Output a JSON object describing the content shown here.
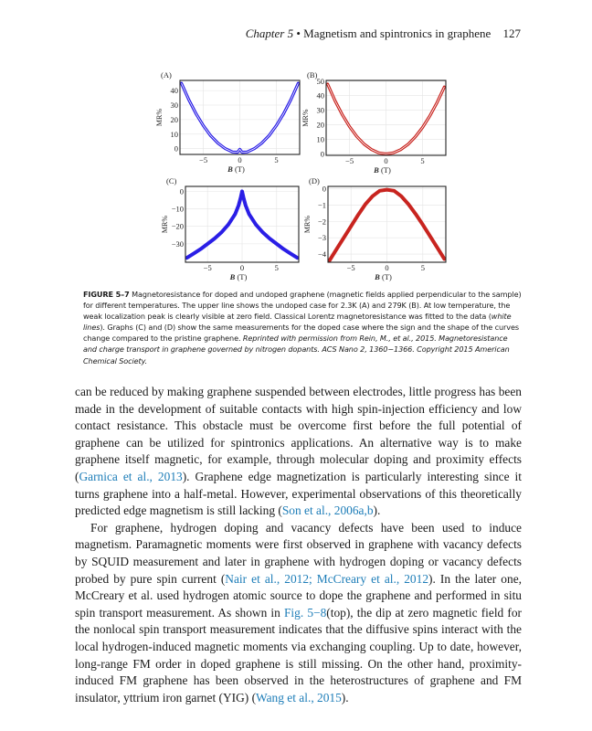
{
  "running_head": {
    "chapter": "Chapter 5",
    "bullet": "•",
    "title": "Magnetism and spintronics in graphene",
    "page": "127"
  },
  "colors": {
    "blue": "#2a1ee6",
    "red": "#c8241f",
    "link": "#1d7db8"
  },
  "chart_data": [
    {
      "panel": "(A)",
      "type": "line",
      "color": "#2a1ee6",
      "fit_line": "white",
      "xlabel_var": "B",
      "xlabel_unit": "(T)",
      "ylabel": "MR%",
      "xlim": [
        -8.2,
        8.2
      ],
      "ylim": [
        -4,
        47
      ],
      "xticks": [
        -5,
        0,
        5
      ],
      "xtick_labels": [
        "−5",
        "0",
        "5"
      ],
      "yticks": [
        0,
        10,
        20,
        30,
        40
      ],
      "ytick_labels": [
        "0",
        "10",
        "20",
        "30",
        "40"
      ],
      "x": [
        -8,
        -7,
        -6,
        -5,
        -4,
        -3,
        -2,
        -1,
        -0.3,
        0,
        0.3,
        1,
        2,
        3,
        4,
        5,
        6,
        7,
        8
      ],
      "y": [
        45,
        33.8,
        24,
        15.8,
        9,
        3.8,
        0,
        -2.3,
        -2.5,
        -0.5,
        -2.5,
        -2.3,
        0,
        3.8,
        9,
        15.8,
        24,
        33.8,
        45
      ]
    },
    {
      "panel": "(B)",
      "type": "line",
      "color": "#c8241f",
      "fit_line": "white",
      "xlabel_var": "B",
      "xlabel_unit": "(T)",
      "ylabel": "MR%",
      "xlim": [
        -8.2,
        8.2
      ],
      "ylim": [
        -1,
        50.5
      ],
      "xticks": [
        -5,
        0,
        5
      ],
      "xtick_labels": [
        "−5",
        "0",
        "5"
      ],
      "yticks": [
        0,
        10,
        20,
        30,
        40,
        50
      ],
      "ytick_labels": [
        "0",
        "10",
        "20",
        "30",
        "40",
        "50"
      ],
      "x": [
        -8,
        -7,
        -6,
        -5,
        -4,
        -3,
        -2,
        -1,
        0,
        1,
        2,
        3,
        4,
        5,
        6,
        7,
        8
      ],
      "y": [
        48,
        36.7,
        27,
        18.7,
        12,
        6.7,
        3,
        0.7,
        0,
        0.7,
        2.9,
        6.5,
        11.6,
        18.1,
        26,
        35.3,
        46
      ]
    },
    {
      "panel": "(C)",
      "type": "line",
      "color": "#2a1ee6",
      "xlabel_var": "B",
      "xlabel_unit": "(T)",
      "ylabel": "MR%",
      "xlim": [
        -8.2,
        8.2
      ],
      "ylim": [
        -40.5,
        2.8
      ],
      "xticks": [
        -5,
        0,
        5
      ],
      "xtick_labels": [
        "−5",
        "0",
        "5"
      ],
      "yticks": [
        0,
        -10,
        -20,
        -30
      ],
      "ytick_labels": [
        "0",
        "−10",
        "−20",
        "−30"
      ],
      "x": [
        -8,
        -7,
        -6,
        -5,
        -4,
        -3,
        -2,
        -1,
        -0.5,
        -0.2,
        0,
        0.2,
        0.5,
        1,
        2,
        3,
        4,
        5,
        6,
        7,
        8
      ],
      "y": [
        -38,
        -35.5,
        -33,
        -30,
        -27,
        -23.5,
        -19,
        -13,
        -8,
        -3.5,
        0,
        -3.5,
        -8,
        -13,
        -19,
        -23.5,
        -27,
        -30,
        -33,
        -35.5,
        -38
      ]
    },
    {
      "panel": "(D)",
      "type": "line",
      "color": "#c8241f",
      "xlabel_var": "B",
      "xlabel_unit": "(T)",
      "ylabel": "MR%",
      "xlim": [
        -8.2,
        8.2
      ],
      "ylim": [
        -4.5,
        0.15
      ],
      "xticks": [
        -5,
        0,
        5
      ],
      "xtick_labels": [
        "−5",
        "0",
        "5"
      ],
      "yticks": [
        0,
        -1,
        -2,
        -3,
        -4
      ],
      "ytick_labels": [
        "0",
        "−1",
        "−2",
        "−3",
        "−4"
      ],
      "x": [
        -8,
        -7,
        -6,
        -5,
        -4,
        -3,
        -2,
        -1,
        0,
        1,
        2,
        3,
        4,
        5,
        6,
        7,
        8
      ],
      "y": [
        -4.4,
        -3.7,
        -3.0,
        -2.3,
        -1.6,
        -0.95,
        -0.45,
        -0.12,
        -0.05,
        -0.12,
        -0.45,
        -0.95,
        -1.55,
        -2.2,
        -2.9,
        -3.6,
        -4.3
      ]
    }
  ],
  "caption": [
    {
      "t": "FIGURE 5–7",
      "s": "b"
    },
    {
      "t": "  Magnetoresistance for doped and undoped graphene (magnetic fields applied perpendicular to the sample) for different temperatures. The upper line shows the undoped case for 2.3K (A) and 279K (B). At low temperature, the weak localization peak is clearly visible at zero field. Classical Lorentz magnetoresistance was fitted to the data (",
      "s": ""
    },
    {
      "t": "white lines",
      "s": "i"
    },
    {
      "t": "). Graphs (C) and (D) show the same measurements for the doped case where the sign and the shape of the curves change compared to the pristine graphene. ",
      "s": ""
    },
    {
      "t": "Reprinted with permission from Rein, M., et al., 2015. Magnetoresistance and charge transport in graphene governed by nitrogen dopants. ACS Nano 2, 1360−1366. Copyright 2015 American Chemical Society.",
      "s": "i"
    }
  ],
  "body": [
    {
      "indent": false,
      "segments": [
        {
          "t": "can be reduced by making graphene suspended between electrodes, little progress has been made in the development of suitable contacts with high spin-injection efficiency and low contact resistance. This obstacle must be overcome first before the full potential of graphene can be utilized for spintronics applications. An alternative way is to make graphene itself magnetic, for example, through molecular doping and proximity effects ("
        },
        {
          "t": "Garnica et al., 2013",
          "link": true
        },
        {
          "t": "). Graphene edge magnetization is particularly interesting since it turns graphene into a half-metal. However, experimental observations of this theoretically predicted edge magnetism is still lacking ("
        },
        {
          "t": "Son et al., 2006a,b",
          "link": true
        },
        {
          "t": ")."
        }
      ]
    },
    {
      "indent": true,
      "segments": [
        {
          "t": "For graphene, hydrogen doping and vacancy defects have been used to induce magnetism. Paramagnetic moments were first observed in graphene with vacancy defects by SQUID measurement and later in graphene with hydrogen doping or vacancy defects probed by pure spin current ("
        },
        {
          "t": "Nair et al., 2012; McCreary et al., 2012",
          "link": true
        },
        {
          "t": "). In the later one, McCreary et al. used hydrogen atomic source to dope the graphene and performed in situ spin transport measurement. As shown in "
        },
        {
          "t": "Fig. 5−8",
          "link": true
        },
        {
          "t": "(top), the dip at zero magnetic field for the nonlocal spin transport measurement indicates that the diffusive spins interact with the local hydrogen-induced magnetic moments via exchanging coupling. Up to date, however, long-range FM order in doped graphene is still missing. On the other hand, proximity-induced FM graphene has been observed in the heterostructures of graphene and FM insulator, yttrium iron garnet (YIG) ("
        },
        {
          "t": "Wang et al., 2015",
          "link": true
        },
        {
          "t": ")."
        }
      ]
    }
  ]
}
